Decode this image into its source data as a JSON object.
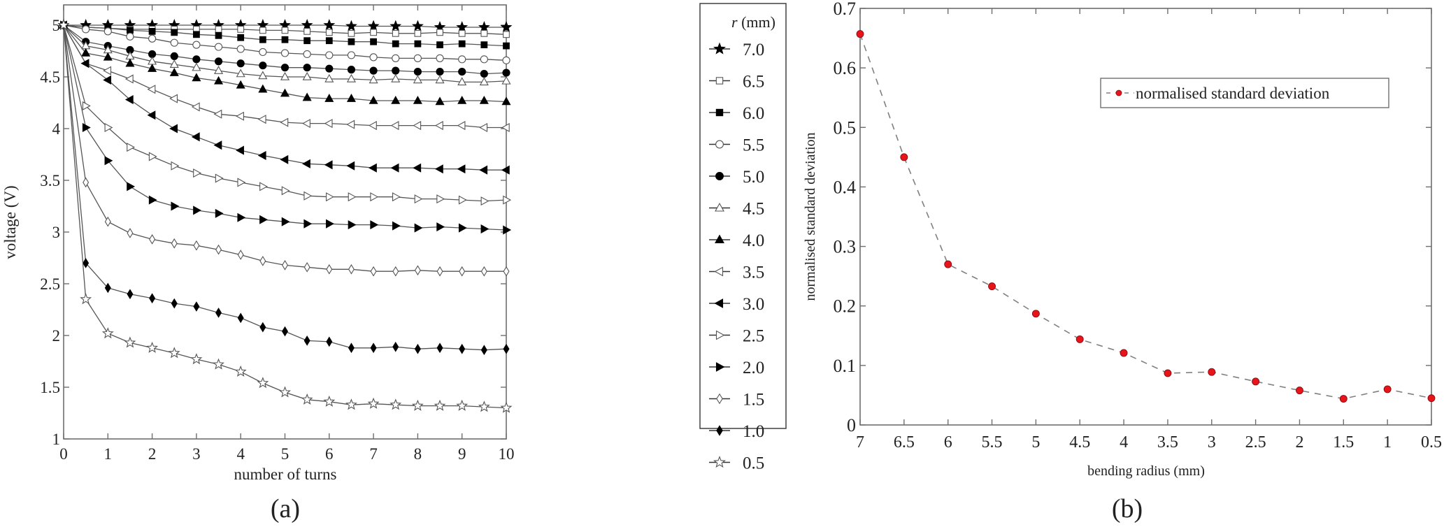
{
  "figure": {
    "panel_a_label": "(a)",
    "panel_b_label": "(b)"
  },
  "chart_data": [
    {
      "type": "line",
      "panel": "(a)",
      "title": "",
      "xlabel": "number of turns",
      "ylabel": "voltage (V)",
      "xlim": [
        0,
        10
      ],
      "ylim": [
        1,
        5
      ],
      "xticks": [
        "0",
        "1",
        "2",
        "3",
        "4",
        "5",
        "6",
        "7",
        "8",
        "9",
        "10"
      ],
      "yticks": [
        "1",
        "1.5",
        "2",
        "2.5",
        "3",
        "3.5",
        "4",
        "4.5",
        "5"
      ],
      "grid": false,
      "legend_position": "outside-right",
      "legend_title_italic": "r",
      "legend_title_unit": " (mm)",
      "x": [
        0,
        0.5,
        1,
        1.5,
        2,
        2.5,
        3,
        3.5,
        4,
        4.5,
        5,
        5.5,
        6,
        6.5,
        7,
        7.5,
        8,
        8.5,
        9,
        9.5,
        10
      ],
      "series": [
        {
          "name": "7.0",
          "marker": "star-filled",
          "values": [
            5,
            5,
            5,
            5,
            5,
            5,
            5,
            5,
            5,
            5,
            5,
            5,
            5,
            4.99,
            4.99,
            4.99,
            4.99,
            4.98,
            4.98,
            4.98,
            4.98
          ]
        },
        {
          "name": "6.5",
          "marker": "square-open",
          "values": [
            5,
            4.98,
            4.97,
            4.96,
            4.96,
            4.96,
            4.96,
            4.96,
            4.96,
            4.95,
            4.95,
            4.94,
            4.93,
            4.92,
            4.93,
            4.92,
            4.92,
            4.93,
            4.92,
            4.92,
            4.91
          ]
        },
        {
          "name": "6.0",
          "marker": "square-filled",
          "values": [
            5,
            4.98,
            4.97,
            4.95,
            4.94,
            4.93,
            4.91,
            4.9,
            4.88,
            4.86,
            4.86,
            4.85,
            4.85,
            4.84,
            4.84,
            4.82,
            4.82,
            4.81,
            4.82,
            4.81,
            4.8
          ]
        },
        {
          "name": "5.5",
          "marker": "circle-open",
          "values": [
            5,
            4.96,
            4.94,
            4.89,
            4.87,
            4.83,
            4.81,
            4.79,
            4.77,
            4.74,
            4.73,
            4.72,
            4.71,
            4.71,
            4.69,
            4.68,
            4.68,
            4.68,
            4.67,
            4.67,
            4.66
          ]
        },
        {
          "name": "5.0",
          "marker": "circle-filled",
          "values": [
            5,
            4.84,
            4.8,
            4.76,
            4.72,
            4.7,
            4.67,
            4.65,
            4.63,
            4.61,
            4.59,
            4.59,
            4.58,
            4.57,
            4.56,
            4.56,
            4.55,
            4.55,
            4.55,
            4.53,
            4.54
          ]
        },
        {
          "name": "4.5",
          "marker": "triangle-up-open",
          "values": [
            5,
            4.8,
            4.76,
            4.7,
            4.65,
            4.62,
            4.59,
            4.56,
            4.53,
            4.51,
            4.5,
            4.5,
            4.48,
            4.48,
            4.47,
            4.48,
            4.47,
            4.47,
            4.45,
            4.45,
            4.46
          ]
        },
        {
          "name": "4.0",
          "marker": "triangle-up-filled",
          "values": [
            5,
            4.73,
            4.69,
            4.63,
            4.58,
            4.54,
            4.49,
            4.46,
            4.42,
            4.38,
            4.34,
            4.3,
            4.29,
            4.29,
            4.27,
            4.27,
            4.27,
            4.26,
            4.27,
            4.27,
            4.26
          ]
        },
        {
          "name": "3.5",
          "marker": "triangle-left-open",
          "values": [
            5,
            4.63,
            4.56,
            4.48,
            4.38,
            4.29,
            4.21,
            4.14,
            4.12,
            4.09,
            4.06,
            4.05,
            4.05,
            4.04,
            4.03,
            4.03,
            4.03,
            4.03,
            4.03,
            4.01,
            4.01
          ]
        },
        {
          "name": "3.0",
          "marker": "triangle-left-filled",
          "values": [
            5,
            4.63,
            4.47,
            4.28,
            4.13,
            4,
            3.92,
            3.84,
            3.79,
            3.74,
            3.7,
            3.66,
            3.65,
            3.64,
            3.62,
            3.62,
            3.62,
            3.61,
            3.61,
            3.6,
            3.6
          ]
        },
        {
          "name": "2.5",
          "marker": "triangle-right-open",
          "values": [
            5,
            4.22,
            4.01,
            3.82,
            3.73,
            3.64,
            3.57,
            3.52,
            3.48,
            3.44,
            3.4,
            3.35,
            3.34,
            3.34,
            3.34,
            3.34,
            3.32,
            3.32,
            3.31,
            3.3,
            3.31
          ]
        },
        {
          "name": "2.0",
          "marker": "triangle-right-filled",
          "values": [
            5,
            4.01,
            3.69,
            3.44,
            3.31,
            3.25,
            3.21,
            3.18,
            3.14,
            3.12,
            3.1,
            3.08,
            3.08,
            3.07,
            3.07,
            3.06,
            3.04,
            3.05,
            3.04,
            3.03,
            3.02
          ]
        },
        {
          "name": "1.5",
          "marker": "diamond-open",
          "values": [
            5,
            3.48,
            3.1,
            2.99,
            2.93,
            2.89,
            2.87,
            2.83,
            2.78,
            2.72,
            2.68,
            2.66,
            2.64,
            2.64,
            2.62,
            2.62,
            2.63,
            2.62,
            2.62,
            2.62,
            2.62
          ]
        },
        {
          "name": "1.0",
          "marker": "diamond-filled",
          "values": [
            5,
            2.7,
            2.46,
            2.4,
            2.36,
            2.31,
            2.28,
            2.22,
            2.17,
            2.08,
            2.04,
            1.95,
            1.94,
            1.88,
            1.88,
            1.89,
            1.87,
            1.88,
            1.87,
            1.86,
            1.87
          ]
        },
        {
          "name": "0.5",
          "marker": "star-open",
          "values": [
            5,
            2.35,
            2.02,
            1.93,
            1.88,
            1.83,
            1.77,
            1.72,
            1.65,
            1.54,
            1.45,
            1.38,
            1.36,
            1.33,
            1.34,
            1.33,
            1.32,
            1.32,
            1.32,
            1.31,
            1.3
          ]
        }
      ]
    },
    {
      "type": "line",
      "panel": "(b)",
      "title": "",
      "xlabel": "bending radius (mm)",
      "ylabel": "normalised standard deviation",
      "xlim": [
        7,
        0.5
      ],
      "ylim": [
        0,
        0.7
      ],
      "xticks": [
        "7",
        "6.5",
        "6",
        "5.5",
        "5",
        "4.5",
        "4",
        "3.5",
        "3",
        "2.5",
        "2",
        "1.5",
        "1",
        "0.5"
      ],
      "yticks": [
        "0",
        "0.1",
        "0.2",
        "0.3",
        "0.4",
        "0.5",
        "0.6",
        "0.7"
      ],
      "grid": false,
      "legend_position": "upper-right",
      "line_style": "dashed",
      "line_color": "#808080",
      "marker_color": "#e8141b",
      "x": [
        7,
        6.5,
        6,
        5.5,
        5,
        4.5,
        4,
        3.5,
        3,
        2.5,
        2,
        1.5,
        1,
        0.5
      ],
      "series": [
        {
          "name": "normalised standard deviation",
          "values": [
            0.657,
            0.45,
            0.27,
            0.233,
            0.187,
            0.144,
            0.121,
            0.087,
            0.089,
            0.073,
            0.058,
            0.044,
            0.06,
            0.045
          ]
        }
      ]
    }
  ]
}
